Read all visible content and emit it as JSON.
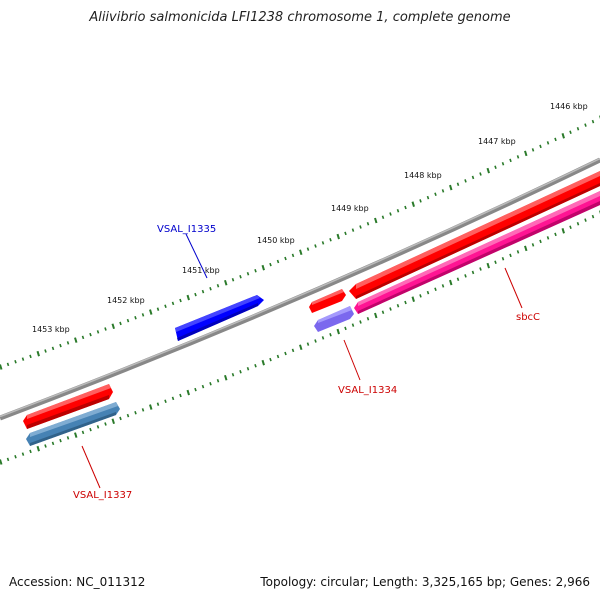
{
  "title": "Aliivibrio salmonicida LFI1238 chromosome 1, complete genome",
  "footer": {
    "accession": "Accession: NC_011312",
    "summary": "Topology: circular; Length: 3,325,165 bp; Genes: 2,966"
  },
  "colors": {
    "backbone": "#808080",
    "ticks": "#2a7a2a",
    "forward_gene": "#ff0000",
    "reverse_gene": "#ff1493",
    "label_blue": "#0000cc",
    "label_red": "#cc0000"
  },
  "ruler": {
    "unit": "kbp",
    "labels": [
      "1446 kbp",
      "1447 kbp",
      "1448 kbp",
      "1449 kbp",
      "1450 kbp",
      "1451 kbp",
      "1452 kbp",
      "1453 kbp"
    ]
  },
  "genes": [
    {
      "name": "VSAL_I1335",
      "color": "#0000ff",
      "label_color": "#0000cc"
    },
    {
      "name": "VSAL_I1334",
      "color": "#7b68ee",
      "label_color": "#cc0000"
    },
    {
      "name": "sbcC",
      "color": "#ff1493",
      "label_color": "#cc0000"
    },
    {
      "name": "VSAL_I1337",
      "color": "#4682b4",
      "label_color": "#cc0000"
    }
  ]
}
